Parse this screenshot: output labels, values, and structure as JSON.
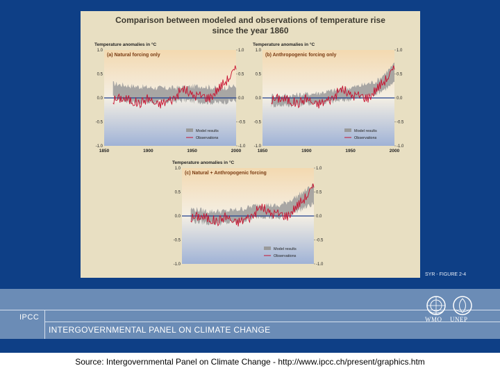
{
  "figure": {
    "title_line1": "Comparison between modeled and observations of temperature rise",
    "title_line2": "since the year 1860",
    "figure_label": "SYR - FIGURE 2-4"
  },
  "footer": {
    "ipcc_short": "IPCC",
    "ipcc_full": "INTERGOVERNMENTAL PANEL ON CLIMATE CHANGE",
    "logo_wmo": "WMO",
    "logo_unep": "UNEP",
    "source": "Source:  Intergovernmental Panel on Climate Change - http://www.ipcc.ch/present/graphics.htm"
  },
  "colors": {
    "model_band": "#9a9a9a",
    "observations": "#c8102e",
    "zero_line": "#1f3f8a"
  },
  "chart_data": [
    {
      "type": "line",
      "panel": "a",
      "title": "(a) Natural forcing only",
      "ylabel": "Temperature anomalies in °C",
      "xlim": [
        1850,
        2000
      ],
      "ylim": [
        -1.0,
        1.0
      ],
      "xticks": [
        "1850",
        "1900",
        "1950",
        "2000"
      ],
      "yticks": [
        "1.0",
        "0.5",
        "0.0",
        "-0.5",
        "-1.0"
      ],
      "legend": [
        "Model results",
        "Observations"
      ],
      "legend_position": "bottom-right",
      "observations": {
        "x": [
          1860,
          1870,
          1880,
          1890,
          1900,
          1910,
          1920,
          1930,
          1940,
          1950,
          1960,
          1970,
          1980,
          1990,
          2000
        ],
        "y": [
          -0.05,
          0.0,
          -0.05,
          -0.12,
          0.0,
          -0.15,
          -0.08,
          0.0,
          0.2,
          0.05,
          0.05,
          0.0,
          0.2,
          0.38,
          0.6
        ]
      },
      "model_results": {
        "x": [
          1860,
          1880,
          1900,
          1920,
          1940,
          1960,
          1980,
          2000
        ],
        "low": [
          0.0,
          -0.08,
          -0.1,
          -0.08,
          -0.05,
          -0.08,
          -0.1,
          -0.05
        ],
        "high": [
          0.3,
          0.25,
          0.22,
          0.2,
          0.22,
          0.25,
          0.2,
          0.25
        ]
      }
    },
    {
      "type": "line",
      "panel": "b",
      "title": "(b) Anthropogenic forcing only",
      "ylabel": "Temperature anomalies in °C",
      "xlim": [
        1850,
        2000
      ],
      "ylim": [
        -1.0,
        1.0
      ],
      "xticks": [
        "1850",
        "1900",
        "1950",
        "2000"
      ],
      "yticks": [
        "1.0",
        "0.5",
        "0.0",
        "-0.5",
        "-1.0"
      ],
      "legend": [
        "Model results",
        "Observations"
      ],
      "legend_position": "bottom-right",
      "observations": {
        "x": [
          1860,
          1870,
          1880,
          1890,
          1900,
          1910,
          1920,
          1930,
          1940,
          1950,
          1960,
          1970,
          1980,
          1990,
          2000
        ],
        "y": [
          -0.05,
          0.0,
          -0.05,
          -0.12,
          0.0,
          -0.15,
          -0.08,
          0.0,
          0.2,
          0.05,
          0.05,
          0.0,
          0.2,
          0.38,
          0.6
        ]
      },
      "model_results": {
        "x": [
          1860,
          1880,
          1900,
          1920,
          1940,
          1960,
          1980,
          2000
        ],
        "low": [
          -0.15,
          -0.15,
          -0.12,
          -0.1,
          -0.05,
          0.0,
          0.1,
          0.3
        ],
        "high": [
          0.05,
          0.05,
          0.08,
          0.12,
          0.18,
          0.25,
          0.35,
          0.7
        ]
      }
    },
    {
      "type": "line",
      "panel": "c",
      "title": "(c) Natural + Anthropogenic forcing",
      "ylabel": "Temperature anomalies in °C",
      "xlim": [
        1850,
        2000
      ],
      "ylim": [
        -1.0,
        1.0
      ],
      "xticks": [],
      "yticks": [
        "1.0",
        "0.5",
        "0.0",
        "-0.5",
        "-1.0"
      ],
      "legend": [
        "Model results",
        "Observations"
      ],
      "legend_position": "bottom-right",
      "observations": {
        "x": [
          1860,
          1870,
          1880,
          1890,
          1900,
          1910,
          1920,
          1930,
          1940,
          1950,
          1960,
          1970,
          1980,
          1990,
          2000
        ],
        "y": [
          -0.05,
          0.0,
          -0.05,
          -0.12,
          0.0,
          -0.15,
          -0.08,
          0.0,
          0.2,
          0.05,
          0.05,
          0.0,
          0.2,
          0.38,
          0.6
        ]
      },
      "model_results": {
        "x": [
          1860,
          1880,
          1900,
          1920,
          1940,
          1960,
          1980,
          2000
        ],
        "low": [
          -0.1,
          -0.15,
          -0.15,
          -0.1,
          0.0,
          -0.05,
          0.1,
          0.25
        ],
        "high": [
          0.15,
          0.1,
          0.1,
          0.15,
          0.25,
          0.2,
          0.4,
          0.65
        ]
      }
    }
  ]
}
